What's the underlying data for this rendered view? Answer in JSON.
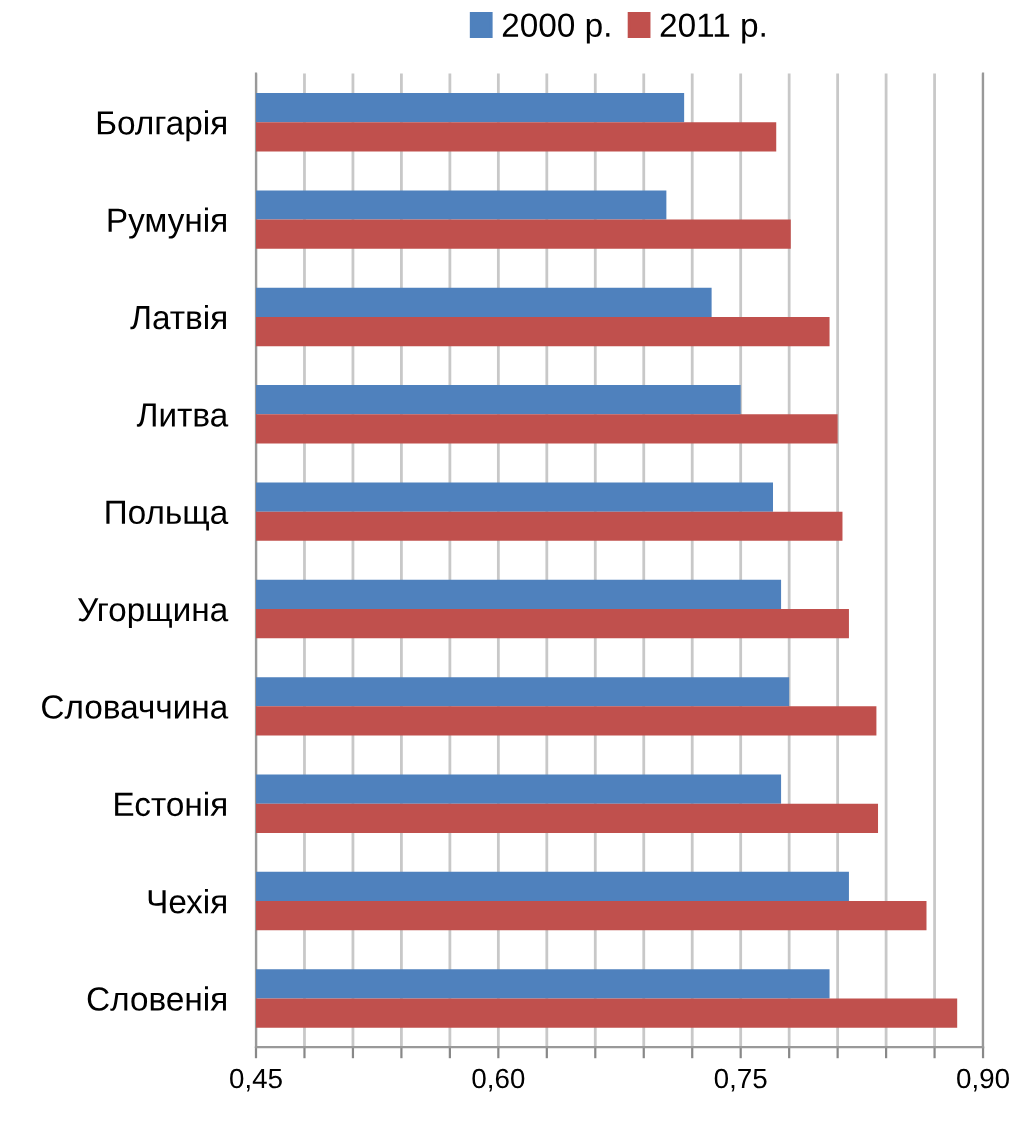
{
  "chart_data": {
    "type": "bar",
    "orientation": "horizontal",
    "categories": [
      "Болгарія",
      "Румунія",
      "Латвія",
      "Литва",
      "Польща",
      "Угорщина",
      "Словаччина",
      "Естонія",
      "Чехія",
      "Словенія"
    ],
    "series": [
      {
        "name": "2000 р.",
        "color": "#4f81bd",
        "values": [
          0.715,
          0.704,
          0.732,
          0.75,
          0.77,
          0.775,
          0.78,
          0.775,
          0.817,
          0.805
        ]
      },
      {
        "name": "2011 р.",
        "color": "#c0504d",
        "values": [
          0.772,
          0.781,
          0.805,
          0.81,
          0.813,
          0.817,
          0.834,
          0.835,
          0.865,
          0.884
        ]
      }
    ],
    "xlim": [
      0.45,
      0.9
    ],
    "xticks": [
      {
        "value": 0.45,
        "label": "0,45"
      },
      {
        "value": 0.48,
        "label": null
      },
      {
        "value": 0.51,
        "label": null
      },
      {
        "value": 0.54,
        "label": null
      },
      {
        "value": 0.57,
        "label": null
      },
      {
        "value": 0.6,
        "label": "0,60"
      },
      {
        "value": 0.63,
        "label": null
      },
      {
        "value": 0.66,
        "label": null
      },
      {
        "value": 0.69,
        "label": null
      },
      {
        "value": 0.72,
        "label": null
      },
      {
        "value": 0.75,
        "label": "0,75"
      },
      {
        "value": 0.78,
        "label": null
      },
      {
        "value": 0.81,
        "label": null
      },
      {
        "value": 0.84,
        "label": null
      },
      {
        "value": 0.87,
        "label": null
      },
      {
        "value": 0.9,
        "label": "0,90"
      }
    ],
    "grid": "x",
    "legend": "top"
  }
}
